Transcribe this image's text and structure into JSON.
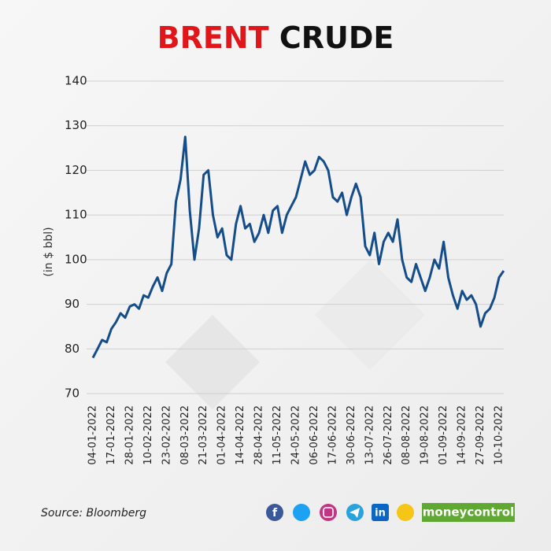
{
  "chart_data": {
    "type": "line",
    "title": [
      "BRENT",
      "CRUDE"
    ],
    "ylabel": "(in $ bbl)",
    "ylim": [
      70,
      140
    ],
    "yticks": [
      70,
      80,
      90,
      100,
      110,
      120,
      130,
      140
    ],
    "grid": true,
    "color": "#144d8a",
    "title_color": "#e0161b",
    "categories": [
      "04-01-2022",
      null,
      null,
      null,
      "17-01-2022",
      null,
      null,
      null,
      "28-01-2022",
      null,
      null,
      null,
      "10-02-2022",
      null,
      null,
      null,
      "23-02-2022",
      null,
      null,
      null,
      "08-03-2022",
      null,
      null,
      null,
      "21-03-2022",
      null,
      null,
      null,
      "01-04-2022",
      null,
      null,
      null,
      "14-04-2022",
      null,
      null,
      null,
      "28-04-2022",
      null,
      null,
      null,
      "11-05-2022",
      null,
      null,
      null,
      "24-05-2022",
      null,
      null,
      null,
      "06-06-2022",
      null,
      null,
      null,
      "17-06-2022",
      null,
      null,
      null,
      "30-06-2022",
      null,
      null,
      null,
      "13-07-2022",
      null,
      null,
      null,
      "26-07-2022",
      null,
      null,
      null,
      "08-08-2022",
      null,
      null,
      null,
      "19-08-2022",
      null,
      null,
      null,
      "01-09-2022",
      null,
      null,
      null,
      "14-09-2022",
      null,
      null,
      null,
      "27-09-2022",
      null,
      null,
      null,
      "10-10-2022",
      null
    ],
    "values": [
      78,
      80,
      82,
      81.5,
      84.5,
      86,
      88,
      87,
      89.5,
      90,
      89,
      92,
      91.5,
      94,
      96,
      93,
      97,
      99,
      113,
      118,
      127.5,
      111,
      100,
      107,
      119,
      120,
      110,
      105,
      107,
      101,
      100,
      108,
      112,
      107,
      108,
      104,
      106,
      110,
      106,
      111,
      112,
      106,
      110,
      112,
      114,
      118,
      122,
      119,
      120,
      123,
      122,
      120,
      114,
      113,
      115,
      110,
      114,
      117,
      114,
      103,
      101,
      106,
      99,
      104,
      106,
      104,
      109,
      100,
      96,
      95,
      99,
      96,
      93,
      96,
      100,
      98,
      104,
      96,
      92,
      89,
      93,
      91,
      92,
      90,
      85,
      88,
      89,
      91.5,
      96,
      97.5
    ]
  },
  "footer": {
    "source": "Source: Bloomberg",
    "facebook": "f",
    "linkedin": "in",
    "brand": "moneycontrol"
  }
}
